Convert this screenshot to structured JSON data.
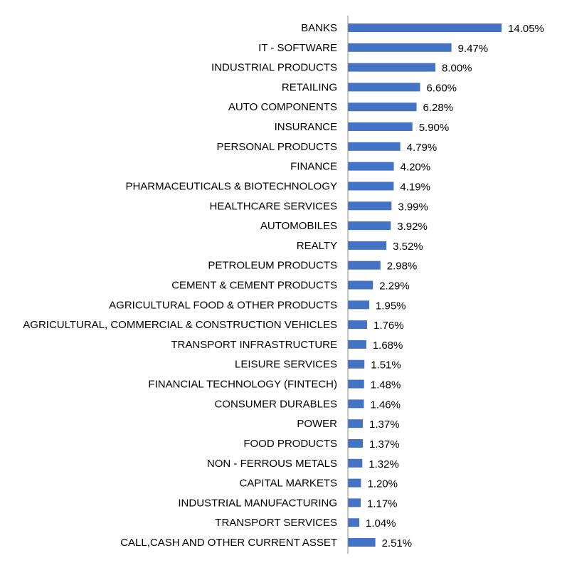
{
  "chart_data": {
    "type": "bar",
    "orientation": "horizontal",
    "title": "",
    "xlabel": "",
    "ylabel": "",
    "grid": false,
    "legend": "none",
    "bar_color": "#4472c4",
    "value_suffix": "%",
    "xlim": [
      0,
      15
    ],
    "categories": [
      "BANKS",
      "IT - SOFTWARE",
      "INDUSTRIAL PRODUCTS",
      "RETAILING",
      "AUTO COMPONENTS",
      "INSURANCE",
      "PERSONAL PRODUCTS",
      "FINANCE",
      "PHARMACEUTICALS & BIOTECHNOLOGY",
      "HEALTHCARE SERVICES",
      "AUTOMOBILES",
      "REALTY",
      "PETROLEUM PRODUCTS",
      "CEMENT & CEMENT PRODUCTS",
      "AGRICULTURAL FOOD & OTHER PRODUCTS",
      "AGRICULTURAL, COMMERCIAL & CONSTRUCTION VEHICLES",
      "TRANSPORT INFRASTRUCTURE",
      "LEISURE SERVICES",
      "FINANCIAL TECHNOLOGY (FINTECH)",
      "CONSUMER DURABLES",
      "POWER",
      "FOOD PRODUCTS",
      "NON - FERROUS METALS",
      "CAPITAL MARKETS",
      "INDUSTRIAL MANUFACTURING",
      "TRANSPORT SERVICES",
      "CALL,CASH AND OTHER CURRENT ASSET"
    ],
    "values": [
      14.05,
      9.47,
      8.0,
      6.6,
      6.28,
      5.9,
      4.79,
      4.2,
      4.19,
      3.99,
      3.92,
      3.52,
      2.98,
      2.29,
      1.95,
      1.76,
      1.68,
      1.51,
      1.48,
      1.46,
      1.37,
      1.37,
      1.32,
      1.2,
      1.17,
      1.04,
      2.51
    ],
    "value_labels": [
      "14.05%",
      "9.47%",
      "8.00%",
      "6.60%",
      "6.28%",
      "5.90%",
      "4.79%",
      "4.20%",
      "4.19%",
      "3.99%",
      "3.92%",
      "3.52%",
      "2.98%",
      "2.29%",
      "1.95%",
      "1.76%",
      "1.68%",
      "1.51%",
      "1.48%",
      "1.46%",
      "1.37%",
      "1.37%",
      "1.32%",
      "1.20%",
      "1.17%",
      "1.04%",
      "2.51%"
    ]
  }
}
